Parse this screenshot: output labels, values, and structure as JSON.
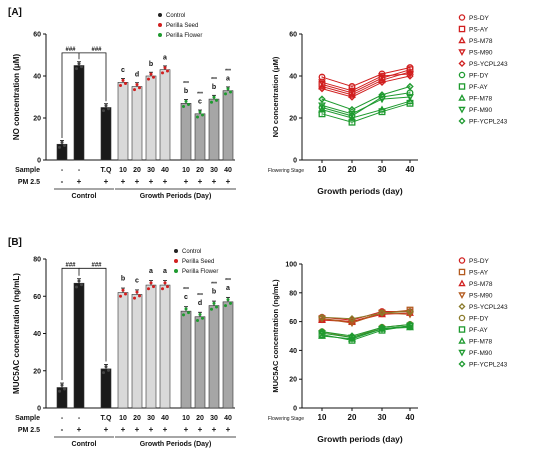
{
  "figure": {
    "panels": [
      {
        "id": "A",
        "label": "[A]",
        "bar": {
          "ylabel": "NO concentration (μM)",
          "ylim": [
            0,
            60
          ],
          "yticks": [
            "0",
            "20",
            "40",
            "60"
          ],
          "legend": [
            {
              "name": "Control",
              "color": "#222222"
            },
            {
              "name": "Perilla Seed",
              "color": "#d11f1f"
            },
            {
              "name": "Perilla Flower",
              "color": "#1e9a2f"
            }
          ],
          "groups_text": {
            "sample_label": "Sample",
            "pm_label": "PM 2.5",
            "control": "Control",
            "growth": "Growth Periods (Day)"
          },
          "control_bars": [
            {
              "sample": "-",
              "pm": "-",
              "value": 7.5,
              "color": "#1a1a1a",
              "sig": ""
            },
            {
              "sample": "-",
              "pm": "+",
              "value": 45,
              "color": "#1a1a1a",
              "sig": ""
            },
            {
              "sample": "T.Q",
              "pm": "+",
              "value": 25,
              "color": "#1a1a1a",
              "sig": ""
            }
          ],
          "sig_brackets": [
            "###",
            "###"
          ],
          "seed_bars": [
            {
              "day": "10",
              "pm": "+",
              "value": 37,
              "sig": "c"
            },
            {
              "day": "20",
              "pm": "+",
              "value": 35,
              "sig": "d"
            },
            {
              "day": "30",
              "pm": "+",
              "value": 40,
              "sig": "b"
            },
            {
              "day": "40",
              "pm": "+",
              "value": 43,
              "sig": "a"
            }
          ],
          "flower_bars": [
            {
              "day": "10",
              "pm": "+",
              "value": 27,
              "sig": "b",
              "sig2": "***"
            },
            {
              "day": "20",
              "pm": "+",
              "value": 22,
              "sig": "c",
              "sig2": "***"
            },
            {
              "day": "30",
              "pm": "+",
              "value": 29,
              "sig": "b",
              "sig2": "***"
            },
            {
              "day": "40",
              "pm": "+",
              "value": 33,
              "sig": "a",
              "sig2": "***"
            }
          ]
        },
        "line": {
          "ylabel": "NO concentration (μM)",
          "xlabel": "Growth periods (day)",
          "x_prefix": "Flowering Stage",
          "x": [
            "10",
            "20",
            "30",
            "40"
          ],
          "ylim": [
            0,
            60
          ],
          "yticks": [
            "0",
            "20",
            "40",
            "60"
          ],
          "series": [
            {
              "name": "PS-DY",
              "color": "#d11f1f",
              "marker": "circle",
              "values": [
                39.5,
                35,
                41,
                44
              ]
            },
            {
              "name": "PS-AY",
              "color": "#d11f1f",
              "marker": "square",
              "values": [
                36,
                32,
                39,
                43
              ]
            },
            {
              "name": "PS-M78",
              "color": "#d11f1f",
              "marker": "triangle-up",
              "values": [
                35,
                31,
                38,
                42
              ]
            },
            {
              "name": "PS-M90",
              "color": "#d11f1f",
              "marker": "triangle-down",
              "values": [
                37,
                33,
                40,
                41
              ]
            },
            {
              "name": "PS-YCPL243",
              "color": "#d11f1f",
              "marker": "diamond",
              "values": [
                34,
                30,
                37,
                40
              ]
            },
            {
              "name": "PF-DY",
              "color": "#1e9a2f",
              "marker": "circle",
              "values": [
                25,
                21,
                30,
                32
              ]
            },
            {
              "name": "PF-AY",
              "color": "#1e9a2f",
              "marker": "square",
              "values": [
                22,
                18,
                23,
                27
              ]
            },
            {
              "name": "PF-M78",
              "color": "#1e9a2f",
              "marker": "triangle-up",
              "values": [
                24,
                20,
                24,
                28
              ]
            },
            {
              "name": "PF-M90",
              "color": "#1e9a2f",
              "marker": "triangle-down",
              "values": [
                26,
                22,
                29,
                30
              ]
            },
            {
              "name": "PF-YCPL243",
              "color": "#1e9a2f",
              "marker": "diamond",
              "values": [
                29,
                24,
                31,
                35
              ]
            }
          ]
        }
      },
      {
        "id": "B",
        "label": "[B]",
        "bar": {
          "ylabel": "MUC5AC concentration (ng/mL)",
          "ylim": [
            0,
            80
          ],
          "yticks": [
            "0",
            "20",
            "40",
            "60",
            "80"
          ],
          "legend": [
            {
              "name": "Control",
              "color": "#222222"
            },
            {
              "name": "Perilla Seed",
              "color": "#d11f1f"
            },
            {
              "name": "Perilla Flower",
              "color": "#1e9a2f"
            }
          ],
          "groups_text": {
            "sample_label": "Sample",
            "pm_label": "PM 2.5",
            "control": "Control",
            "growth": "Growth Periods (Day)"
          },
          "control_bars": [
            {
              "sample": "-",
              "pm": "-",
              "value": 11,
              "color": "#1a1a1a",
              "sig": ""
            },
            {
              "sample": "-",
              "pm": "+",
              "value": 67,
              "color": "#1a1a1a",
              "sig": ""
            },
            {
              "sample": "T.Q",
              "pm": "+",
              "value": 21,
              "color": "#1a1a1a",
              "sig": ""
            }
          ],
          "sig_brackets": [
            "###",
            "###"
          ],
          "seed_bars": [
            {
              "day": "10",
              "pm": "+",
              "value": 62,
              "sig": "b"
            },
            {
              "day": "20",
              "pm": "+",
              "value": 61,
              "sig": "c"
            },
            {
              "day": "30",
              "pm": "+",
              "value": 66,
              "sig": "a"
            },
            {
              "day": "40",
              "pm": "+",
              "value": 66,
              "sig": "a"
            }
          ],
          "flower_bars": [
            {
              "day": "10",
              "pm": "+",
              "value": 52,
              "sig": "c",
              "sig2": "***"
            },
            {
              "day": "20",
              "pm": "+",
              "value": 49,
              "sig": "d",
              "sig2": "***"
            },
            {
              "day": "30",
              "pm": "+",
              "value": 55,
              "sig": "b",
              "sig2": "***"
            },
            {
              "day": "40",
              "pm": "+",
              "value": 57,
              "sig": "a",
              "sig2": "***"
            }
          ]
        },
        "line": {
          "ylabel": "MUC5AC concentration (ng/mL)",
          "xlabel": "Growth periods (day)",
          "x_prefix": "Flowering Stage",
          "x": [
            "10",
            "20",
            "30",
            "40"
          ],
          "ylim": [
            0,
            100
          ],
          "yticks": [
            "0",
            "20",
            "40",
            "60",
            "80",
            "100"
          ],
          "series": [
            {
              "name": "PS-DY",
              "color": "#d11f1f",
              "marker": "circle",
              "values": [
                63,
                61,
                67,
                67
              ]
            },
            {
              "name": "PS-AY",
              "color": "#b35a1f",
              "marker": "square",
              "values": [
                62,
                60,
                66,
                68
              ]
            },
            {
              "name": "PS-M78",
              "color": "#d11f1f",
              "marker": "triangle-up",
              "values": [
                61,
                60,
                65,
                66
              ]
            },
            {
              "name": "PS-M90",
              "color": "#b35a1f",
              "marker": "triangle-down",
              "values": [
                62,
                59,
                66,
                65
              ]
            },
            {
              "name": "PS-YCPL243",
              "color": "#8a7a2a",
              "marker": "diamond",
              "values": [
                63,
                62,
                66,
                67
              ]
            },
            {
              "name": "PF-DY",
              "color": "#8a7a2a",
              "marker": "circle",
              "values": [
                53,
                49,
                56,
                58
              ]
            },
            {
              "name": "PF-AY",
              "color": "#1e9a2f",
              "marker": "square",
              "values": [
                51,
                47,
                54,
                57
              ]
            },
            {
              "name": "PF-M78",
              "color": "#1e9a2f",
              "marker": "triangle-up",
              "values": [
                50,
                48,
                55,
                56
              ]
            },
            {
              "name": "PF-M90",
              "color": "#1e9a2f",
              "marker": "triangle-down",
              "values": [
                52,
                49,
                55,
                57
              ]
            },
            {
              "name": "PF-YCPL243",
              "color": "#1e9a2f",
              "marker": "diamond",
              "values": [
                53,
                50,
                56,
                58
              ]
            }
          ]
        }
      }
    ]
  },
  "chart_data": [
    {
      "type": "bar",
      "panel": "A",
      "ylabel": "NO concentration (μM)",
      "ylim": [
        0,
        60
      ],
      "categories": [
        "Control -/-",
        "Control -/+",
        "T.Q/+",
        "Seed 10",
        "Seed 20",
        "Seed 30",
        "Seed 40",
        "Flower 10",
        "Flower 20",
        "Flower 30",
        "Flower 40"
      ],
      "series": [
        {
          "name": "Control",
          "values": [
            7.5,
            45,
            25,
            null,
            null,
            null,
            null,
            null,
            null,
            null,
            null
          ]
        },
        {
          "name": "Perilla Seed",
          "values": [
            null,
            null,
            null,
            37,
            35,
            40,
            43,
            null,
            null,
            null,
            null
          ]
        },
        {
          "name": "Perilla Flower",
          "values": [
            null,
            null,
            null,
            null,
            null,
            null,
            null,
            27,
            22,
            29,
            33
          ]
        }
      ]
    },
    {
      "type": "line",
      "panel": "A",
      "xlabel": "Growth periods (day)",
      "ylabel": "NO concentration (μM)",
      "x": [
        10,
        20,
        30,
        40
      ],
      "ylim": [
        0,
        60
      ],
      "series": [
        {
          "name": "PS-DY",
          "values": [
            39.5,
            35,
            41,
            44
          ]
        },
        {
          "name": "PS-AY",
          "values": [
            36,
            32,
            39,
            43
          ]
        },
        {
          "name": "PS-M78",
          "values": [
            35,
            31,
            38,
            42
          ]
        },
        {
          "name": "PS-M90",
          "values": [
            37,
            33,
            40,
            41
          ]
        },
        {
          "name": "PS-YCPL243",
          "values": [
            34,
            30,
            37,
            40
          ]
        },
        {
          "name": "PF-DY",
          "values": [
            25,
            21,
            30,
            32
          ]
        },
        {
          "name": "PF-AY",
          "values": [
            22,
            18,
            23,
            27
          ]
        },
        {
          "name": "PF-M78",
          "values": [
            24,
            20,
            24,
            28
          ]
        },
        {
          "name": "PF-M90",
          "values": [
            26,
            22,
            29,
            30
          ]
        },
        {
          "name": "PF-YCPL243",
          "values": [
            29,
            24,
            31,
            35
          ]
        }
      ]
    },
    {
      "type": "bar",
      "panel": "B",
      "ylabel": "MUC5AC concentration (ng/mL)",
      "ylim": [
        0,
        80
      ],
      "categories": [
        "Control -/-",
        "Control -/+",
        "T.Q/+",
        "Seed 10",
        "Seed 20",
        "Seed 30",
        "Seed 40",
        "Flower 10",
        "Flower 20",
        "Flower 30",
        "Flower 40"
      ],
      "series": [
        {
          "name": "Control",
          "values": [
            11,
            67,
            21,
            null,
            null,
            null,
            null,
            null,
            null,
            null,
            null
          ]
        },
        {
          "name": "Perilla Seed",
          "values": [
            null,
            null,
            null,
            62,
            61,
            66,
            66,
            null,
            null,
            null,
            null
          ]
        },
        {
          "name": "Perilla Flower",
          "values": [
            null,
            null,
            null,
            null,
            null,
            null,
            null,
            52,
            49,
            55,
            57
          ]
        }
      ]
    },
    {
      "type": "line",
      "panel": "B",
      "xlabel": "Growth periods (day)",
      "ylabel": "MUC5AC concentration (ng/mL)",
      "x": [
        10,
        20,
        30,
        40
      ],
      "ylim": [
        0,
        100
      ],
      "series": [
        {
          "name": "PS-DY",
          "values": [
            63,
            61,
            67,
            67
          ]
        },
        {
          "name": "PS-AY",
          "values": [
            62,
            60,
            66,
            68
          ]
        },
        {
          "name": "PS-M78",
          "values": [
            61,
            60,
            65,
            66
          ]
        },
        {
          "name": "PS-M90",
          "values": [
            62,
            59,
            66,
            65
          ]
        },
        {
          "name": "PS-YCPL243",
          "values": [
            63,
            62,
            66,
            67
          ]
        },
        {
          "name": "PF-DY",
          "values": [
            53,
            49,
            56,
            58
          ]
        },
        {
          "name": "PF-AY",
          "values": [
            51,
            47,
            54,
            57
          ]
        },
        {
          "name": "PF-M78",
          "values": [
            50,
            48,
            55,
            56
          ]
        },
        {
          "name": "PF-M90",
          "values": [
            52,
            49,
            55,
            57
          ]
        },
        {
          "name": "PF-YCPL243",
          "values": [
            53,
            50,
            56,
            58
          ]
        }
      ]
    }
  ]
}
